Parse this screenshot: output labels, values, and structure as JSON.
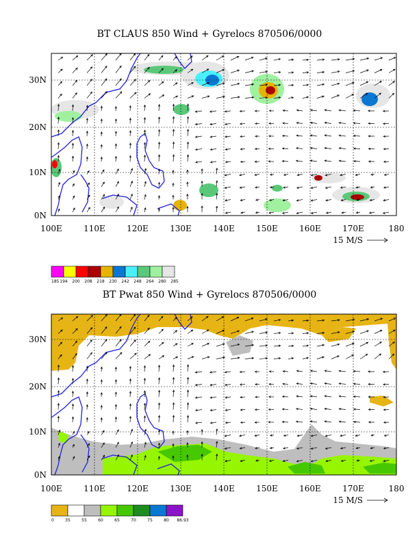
{
  "panels": [
    {
      "title": "BT CLAUS 850 Wind + Gyrelocs 870506/0000",
      "lat_labels": [
        "30N",
        "20N",
        "10N",
        "0N"
      ],
      "lon_labels": [
        "100E",
        "110E",
        "120E",
        "130E",
        "140E",
        "150E",
        "160E",
        "170E",
        "180"
      ],
      "ref_vector": "15 M/S",
      "legend": {
        "colors": [
          "#ff00ff",
          "#ffff00",
          "#ff0000",
          "#aa0000",
          "#e6b400",
          "#0a78d2",
          "#4bf0ff",
          "#5ac878",
          "#a0f0a0",
          "#e6e6e6"
        ],
        "labels": [
          "185",
          "194",
          "200",
          "208",
          "218",
          "230",
          "242",
          "248",
          "264",
          "280",
          "285"
        ]
      }
    },
    {
      "title": "BT Pwat 850 Wind + Gyrelocs 870506/0000",
      "lat_labels": [
        "30N",
        "20N",
        "10N",
        "0N"
      ],
      "lon_labels": [
        "100E",
        "110E",
        "120E",
        "130E",
        "140E",
        "150E",
        "160E",
        "170E",
        "180"
      ],
      "ref_vector": "15 M/S",
      "legend": {
        "colors": [
          "#e6b414",
          "#ffffff",
          "#bebebe",
          "#96f500",
          "#46c800",
          "#1e8c1e",
          "#0a78d2",
          "#8c14c8"
        ],
        "labels": [
          "0",
          "35",
          "55",
          "60",
          "65",
          "70",
          "75",
          "80",
          "86.93"
        ]
      }
    }
  ]
}
